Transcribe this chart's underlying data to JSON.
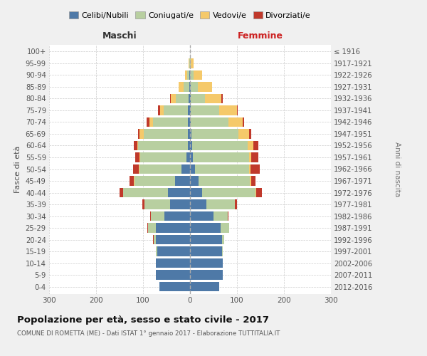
{
  "age_groups": [
    "0-4",
    "5-9",
    "10-14",
    "15-19",
    "20-24",
    "25-29",
    "30-34",
    "35-39",
    "40-44",
    "45-49",
    "50-54",
    "55-59",
    "60-64",
    "65-69",
    "70-74",
    "75-79",
    "80-84",
    "85-89",
    "90-94",
    "95-99",
    "100+"
  ],
  "birth_years": [
    "2012-2016",
    "2007-2011",
    "2002-2006",
    "1997-2001",
    "1992-1996",
    "1987-1991",
    "1982-1986",
    "1977-1981",
    "1972-1976",
    "1967-1971",
    "1962-1966",
    "1957-1961",
    "1952-1956",
    "1947-1951",
    "1942-1946",
    "1937-1941",
    "1932-1936",
    "1927-1931",
    "1922-1926",
    "1917-1921",
    "≤ 1916"
  ],
  "maschi": {
    "celibi": [
      65,
      72,
      72,
      70,
      73,
      72,
      55,
      42,
      47,
      32,
      18,
      8,
      5,
      4,
      5,
      4,
      3,
      1,
      1,
      0,
      0
    ],
    "coniugati": [
      0,
      0,
      0,
      2,
      5,
      18,
      28,
      55,
      95,
      86,
      90,
      98,
      105,
      95,
      74,
      52,
      28,
      12,
      5,
      1,
      0
    ],
    "vedovi": [
      0,
      0,
      0,
      0,
      0,
      0,
      0,
      0,
      0,
      1,
      1,
      1,
      2,
      8,
      8,
      7,
      10,
      12,
      5,
      2,
      0
    ],
    "divorziati": [
      0,
      0,
      0,
      0,
      1,
      1,
      2,
      5,
      8,
      10,
      12,
      10,
      8,
      4,
      5,
      5,
      2,
      0,
      0,
      0,
      0
    ]
  },
  "femmine": {
    "nubili": [
      62,
      70,
      70,
      68,
      68,
      65,
      50,
      35,
      25,
      18,
      10,
      6,
      5,
      3,
      2,
      2,
      2,
      2,
      0,
      0,
      0
    ],
    "coniugate": [
      0,
      0,
      0,
      2,
      5,
      18,
      30,
      60,
      115,
      110,
      115,
      120,
      118,
      100,
      80,
      60,
      30,
      15,
      8,
      2,
      0
    ],
    "vedove": [
      0,
      0,
      0,
      0,
      0,
      0,
      0,
      0,
      1,
      2,
      4,
      5,
      12,
      22,
      30,
      38,
      35,
      30,
      18,
      5,
      0
    ],
    "divorziate": [
      0,
      0,
      0,
      0,
      0,
      1,
      2,
      5,
      12,
      10,
      20,
      15,
      10,
      5,
      3,
      2,
      2,
      0,
      0,
      0,
      0
    ]
  },
  "colors": {
    "celibi": "#4e79a7",
    "coniugati": "#b8cfa0",
    "vedovi": "#f5c96a",
    "divorziati": "#c0392b"
  },
  "legend_labels": [
    "Celibi/Nubili",
    "Coniugati/e",
    "Vedovi/e",
    "Divorziati/e"
  ],
  "title": "Popolazione per età, sesso e stato civile - 2017",
  "subtitle": "COMUNE DI ROMETTA (ME) - Dati ISTAT 1° gennaio 2017 - Elaborazione TUTTITALIA.IT",
  "xlabel_left": "Maschi",
  "xlabel_right": "Femmine",
  "ylabel_left": "Fasce di età",
  "ylabel_right": "Anni di nascita",
  "xlim": 300,
  "background_color": "#f0f0f0",
  "plot_bg": "#ffffff"
}
